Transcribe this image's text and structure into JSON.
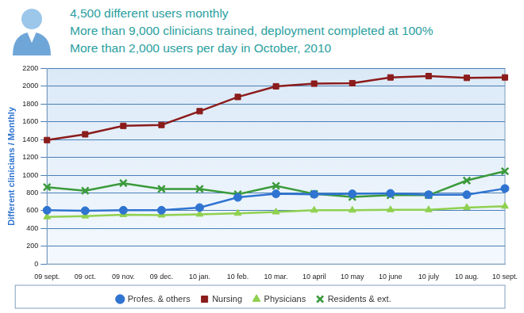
{
  "chart_data": {
    "type": "line",
    "annotations": [
      "4,500 different users monthly",
      "More than 9,000 clinicians trained, deployment completed at 100%",
      "More than 2,000 users per day in October, 2010"
    ],
    "y_label": "Different clinicians / Monthly",
    "categories": [
      "09 sept.",
      "09 oct.",
      "09 nov.",
      "09 dec.",
      "10 jan.",
      "10 feb.",
      "10 mar.",
      "10 april",
      "10 may",
      "10 june",
      "10 july",
      "10 aug.",
      "10 sept."
    ],
    "series": [
      {
        "name": "Profes. & others",
        "color": "#2f74d0",
        "marker": "circle",
        "values": [
          605,
          600,
          605,
          605,
          635,
          750,
          790,
          785,
          790,
          795,
          780,
          780,
          850
        ]
      },
      {
        "name": "Nursing",
        "color": "#8b1c1c",
        "marker": "square",
        "values": [
          1395,
          1460,
          1555,
          1565,
          1720,
          1880,
          2000,
          2030,
          2035,
          2100,
          2115,
          2095,
          2100
        ]
      },
      {
        "name": "Physicians",
        "color": "#8fd14f",
        "marker": "triangle",
        "values": [
          530,
          540,
          555,
          550,
          560,
          570,
          585,
          605,
          605,
          610,
          610,
          635,
          650
        ]
      },
      {
        "name": "Residents & ext.",
        "color": "#3a9a3a",
        "marker": "cross",
        "values": [
          865,
          825,
          910,
          845,
          845,
          785,
          880,
          790,
          755,
          775,
          775,
          940,
          1045
        ]
      }
    ],
    "ylim": [
      0,
      2200
    ],
    "yticks": [
      0,
      200,
      400,
      600,
      800,
      1000,
      1200,
      1400,
      1600,
      1800,
      2000,
      2200
    ],
    "grid": true,
    "legend": "bottom"
  }
}
